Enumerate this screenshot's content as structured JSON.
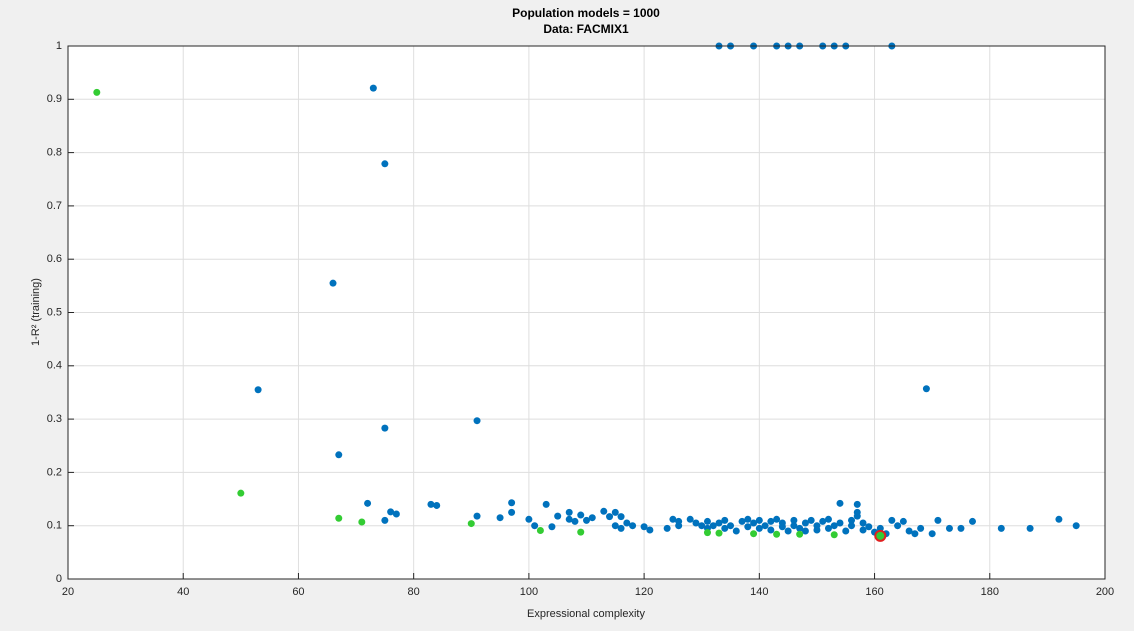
{
  "chart_data": {
    "type": "scatter",
    "title": "Population models = 1000",
    "subtitle": "Data: FACMIX1",
    "xlabel": "Expressional complexity",
    "ylabel": "1-R² (training)",
    "xlim": [
      20,
      200
    ],
    "ylim": [
      0,
      1
    ],
    "xticks": [
      20,
      40,
      60,
      80,
      100,
      120,
      140,
      160,
      180,
      200
    ],
    "yticks": [
      0,
      0.1,
      0.2,
      0.3,
      0.4,
      0.5,
      0.6,
      0.7,
      0.8,
      0.9,
      1
    ],
    "grid": true,
    "series": [
      {
        "color": "#0072bd",
        "x": [
          133,
          135,
          139,
          143,
          145,
          147,
          151,
          153,
          155,
          163,
          73,
          75,
          66,
          53,
          169,
          75,
          91,
          67,
          72,
          75,
          76,
          77,
          83,
          84,
          91,
          95,
          97,
          97,
          100,
          101,
          103,
          104,
          105,
          107,
          107,
          108,
          109,
          110,
          111,
          113,
          114,
          115,
          115,
          116,
          116,
          117,
          118,
          120,
          121,
          124,
          125,
          126,
          126,
          128,
          129,
          130,
          131,
          131,
          132,
          133,
          134,
          134,
          135,
          136,
          137,
          138,
          138,
          139,
          140,
          140,
          141,
          142,
          142,
          143,
          144,
          144,
          145,
          146,
          146,
          147,
          148,
          148,
          149,
          150,
          150,
          151,
          152,
          152,
          153,
          154,
          154,
          155,
          156,
          156,
          157,
          157,
          157,
          158,
          158,
          159,
          160,
          161,
          162,
          163,
          164,
          165,
          166,
          167,
          168,
          170,
          171,
          173,
          175,
          177,
          182,
          187,
          192,
          195
        ],
        "values": [
          1,
          1,
          1,
          1,
          1,
          1,
          1,
          1,
          1,
          1,
          0.921,
          0.779,
          0.555,
          0.355,
          0.357,
          0.283,
          0.297,
          0.233,
          0.142,
          0.11,
          0.126,
          0.122,
          0.14,
          0.138,
          0.118,
          0.115,
          0.143,
          0.125,
          0.112,
          0.1,
          0.14,
          0.098,
          0.118,
          0.112,
          0.125,
          0.108,
          0.12,
          0.11,
          0.115,
          0.127,
          0.117,
          0.125,
          0.1,
          0.095,
          0.117,
          0.105,
          0.1,
          0.098,
          0.092,
          0.095,
          0.112,
          0.1,
          0.108,
          0.112,
          0.105,
          0.1,
          0.095,
          0.108,
          0.1,
          0.105,
          0.095,
          0.11,
          0.1,
          0.09,
          0.108,
          0.112,
          0.098,
          0.105,
          0.095,
          0.11,
          0.1,
          0.092,
          0.108,
          0.112,
          0.098,
          0.105,
          0.09,
          0.11,
          0.1,
          0.095,
          0.105,
          0.09,
          0.11,
          0.1,
          0.092,
          0.108,
          0.095,
          0.112,
          0.1,
          0.105,
          0.142,
          0.09,
          0.11,
          0.1,
          0.14,
          0.125,
          0.118,
          0.105,
          0.092,
          0.098,
          0.088,
          0.095,
          0.085,
          0.11,
          0.1,
          0.108,
          0.09,
          0.085,
          0.095,
          0.085,
          0.11,
          0.095,
          0.095,
          0.108,
          0.095,
          0.095,
          0.112,
          0.1
        ]
      },
      {
        "color": "#33cc33",
        "x": [
          25,
          50,
          67,
          71,
          90,
          102,
          109,
          131,
          133,
          139,
          143,
          147,
          153
        ],
        "values": [
          0.913,
          0.161,
          0.114,
          0.107,
          0.104,
          0.091,
          0.088,
          0.087,
          0.086,
          0.085,
          0.084,
          0.084,
          0.083
        ]
      },
      {
        "color": "#33cc33",
        "edgecolor": "#e02020",
        "x": [
          161
        ],
        "values": [
          0.081
        ]
      }
    ]
  }
}
